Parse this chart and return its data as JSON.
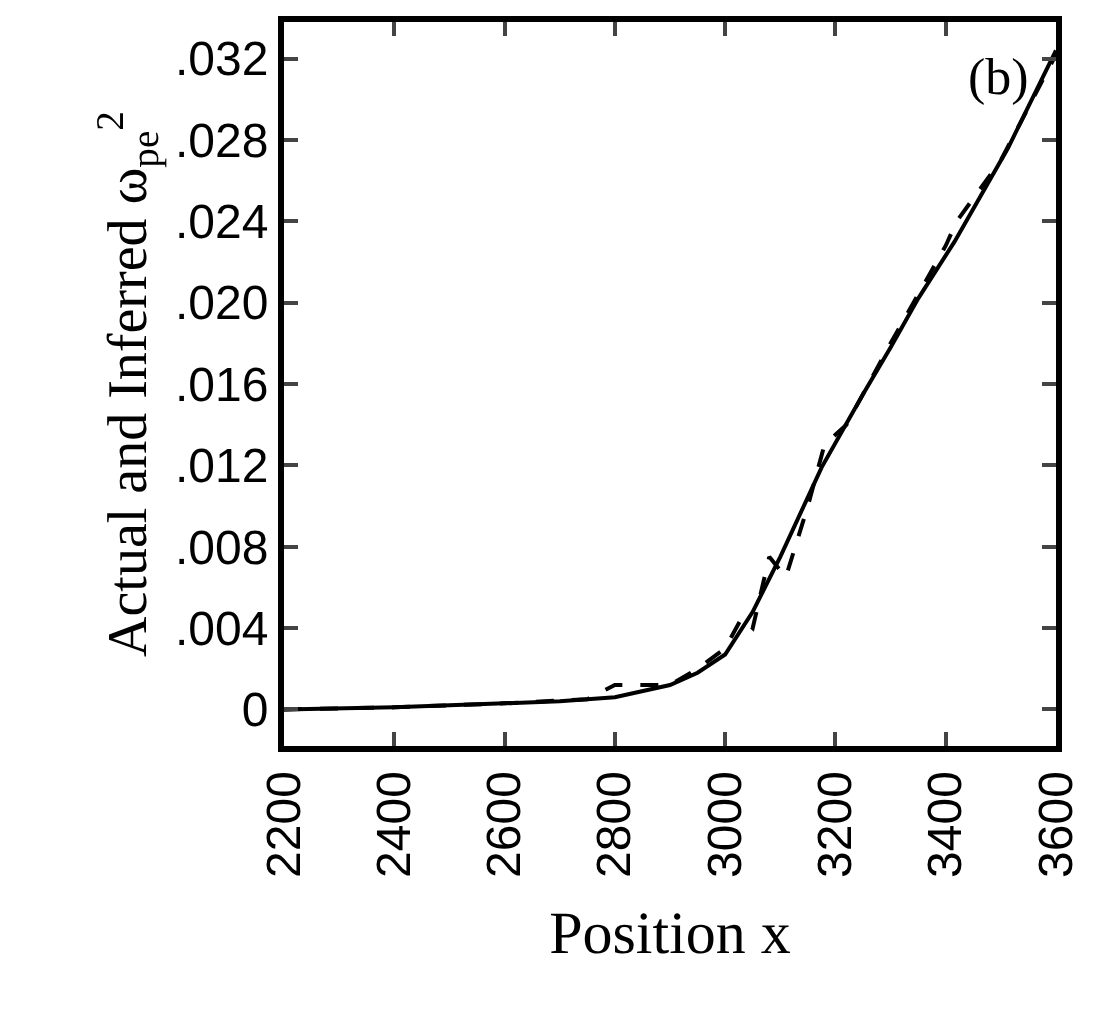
{
  "chart_data": {
    "type": "line",
    "xlabel": "Position x",
    "ylabel": "Actual and Inferred ω$_{pe}$$^{2}$",
    "annotations": [
      "(b)"
    ],
    "xlim": [
      2200,
      3600
    ],
    "xticks": [
      2200,
      2400,
      2600,
      2800,
      3000,
      3200,
      3400,
      3600
    ],
    "ylim": [
      -0.0018,
      0.0338
    ],
    "yticks": [
      {
        "value": 0,
        "label": "0"
      },
      {
        "value": 0.004,
        "label": ".004"
      },
      {
        "value": 0.008,
        "label": ".008"
      },
      {
        "value": 0.012,
        "label": ".012"
      },
      {
        "value": 0.016,
        "label": ".016"
      },
      {
        "value": 0.02,
        "label": ".020"
      },
      {
        "value": 0.024,
        "label": ".024"
      },
      {
        "value": 0.028,
        "label": ".028"
      },
      {
        "value": 0.032,
        "label": ".032"
      }
    ],
    "grid": false,
    "marker": "none",
    "series": [
      {
        "color": "#000000",
        "line_style": "solid",
        "x": [
          2200,
          2400,
          2600,
          2700,
          2800,
          2900,
          2950,
          3000,
          3050,
          3100,
          3175,
          3250,
          3300,
          3350,
          3416,
          3513,
          3589,
          3600
        ],
        "values": [
          0,
          0.0001,
          0.0003,
          0.0004,
          0.0006,
          0.0012,
          0.0018,
          0.0027,
          0.0048,
          0.0075,
          0.0119,
          0.0155,
          0.0178,
          0.0202,
          0.023,
          0.0276,
          0.0318,
          0.0324
        ]
      },
      {
        "color": "#000000",
        "line_style": "dashed",
        "x": [
          2200,
          2400,
          2600,
          2750,
          2800,
          2850,
          2900,
          2950,
          3000,
          3030,
          3050,
          3080,
          3110,
          3150,
          3180,
          3200,
          3220,
          3300,
          3400,
          3420,
          3500,
          3600
        ],
        "values": [
          0,
          0.0001,
          0.0003,
          0.0005,
          0.0012,
          0.0012,
          0.0012,
          0.002,
          0.003,
          0.0045,
          0.004,
          0.0075,
          0.0065,
          0.01,
          0.013,
          0.0135,
          0.014,
          0.018,
          0.0228,
          0.024,
          0.027,
          0.0322
        ]
      }
    ]
  }
}
